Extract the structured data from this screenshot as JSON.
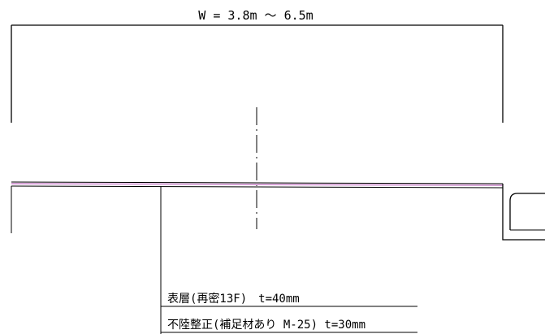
{
  "dimension": {
    "width_label": "W = 3.8m ～ 6.5m"
  },
  "layers": {
    "surface": "表層(再密13F)　t=40mm",
    "leveling": "不陸整正(補足材あり M-25) t=30mm"
  },
  "colors": {
    "pavement": "#d6a0d6",
    "ink": "#000000"
  }
}
